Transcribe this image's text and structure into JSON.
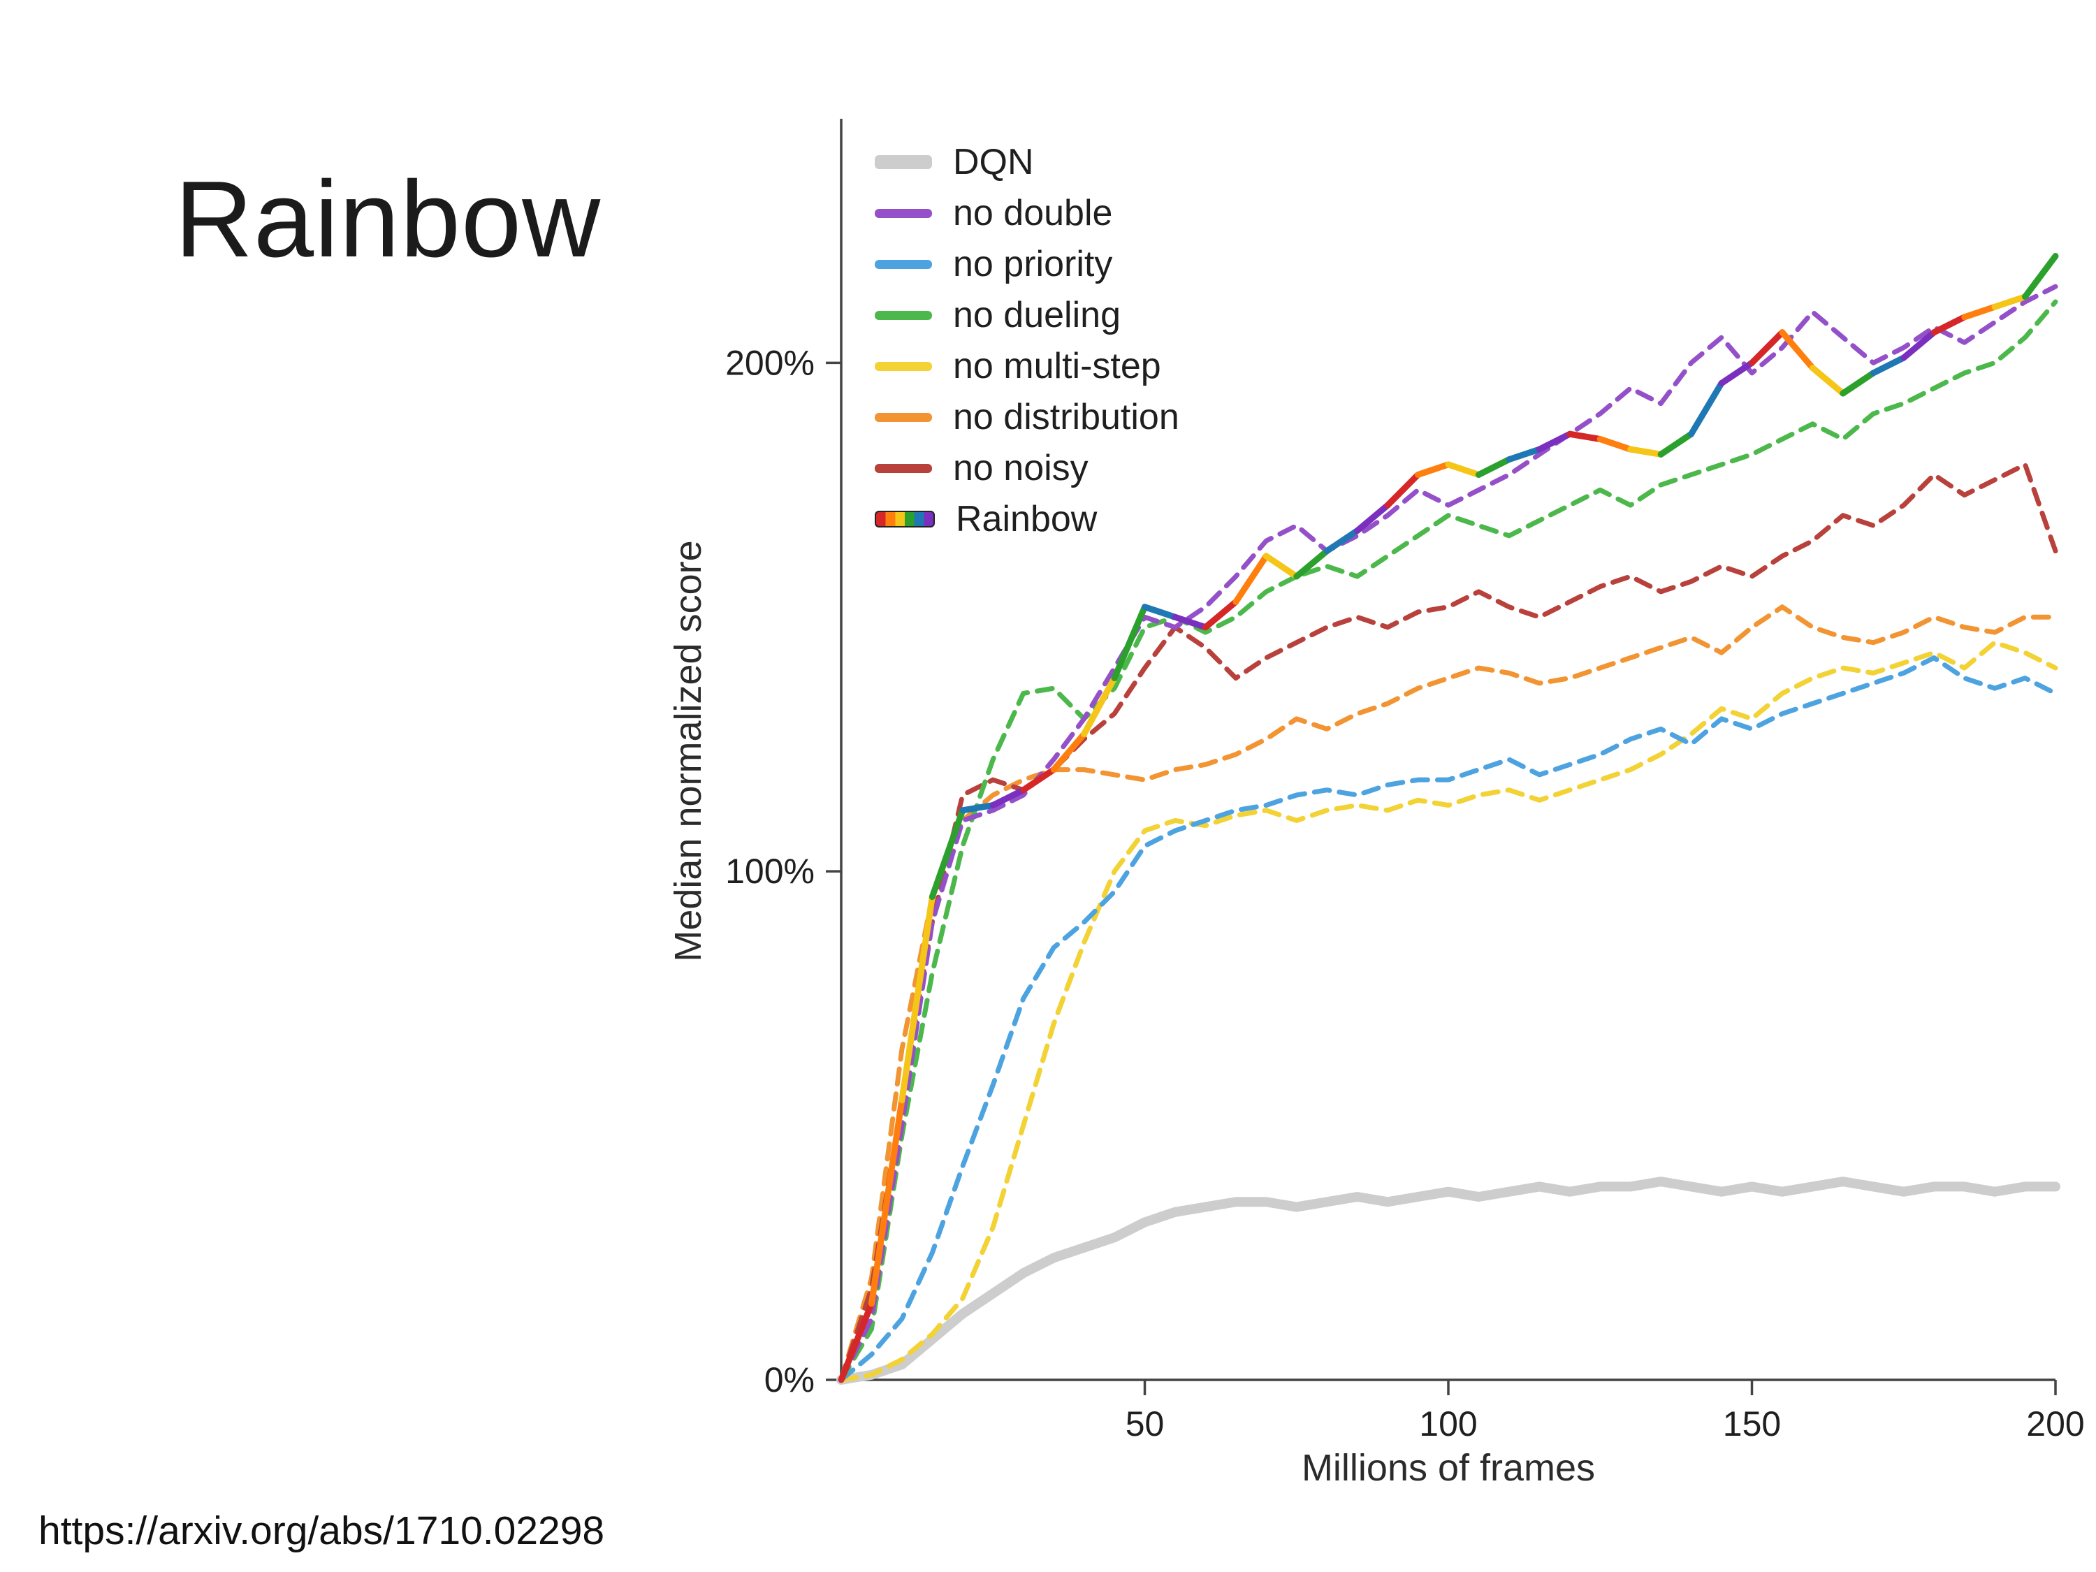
{
  "slide": {
    "title": "Rainbow",
    "url": "https://arxiv.org/abs/1710.02298"
  },
  "chart_data": {
    "type": "line",
    "title": "",
    "xlabel": "Millions of frames",
    "ylabel": "Median normalized score",
    "xlim": [
      0,
      200
    ],
    "ylim": [
      0,
      248
    ],
    "grid": false,
    "legend_position": "top-left",
    "xticks": [
      50,
      100,
      150,
      200
    ],
    "yticks": [
      {
        "value": 0,
        "label": "0%"
      },
      {
        "value": 100,
        "label": "100%"
      },
      {
        "value": 200,
        "label": "200%"
      }
    ],
    "x": [
      0,
      5,
      10,
      15,
      20,
      25,
      30,
      35,
      40,
      45,
      50,
      55,
      60,
      65,
      70,
      75,
      80,
      85,
      90,
      95,
      100,
      105,
      110,
      115,
      120,
      125,
      130,
      135,
      140,
      145,
      150,
      155,
      160,
      165,
      170,
      175,
      180,
      185,
      190,
      195,
      200
    ],
    "series": [
      {
        "name": "DQN",
        "color": "#cdcdcd",
        "style": "solid",
        "width": 14,
        "values": [
          0,
          1,
          3,
          8,
          13,
          17,
          21,
          24,
          26,
          28,
          31,
          33,
          34,
          35,
          35,
          34,
          35,
          36,
          35,
          36,
          37,
          36,
          37,
          38,
          37,
          38,
          38,
          39,
          38,
          37,
          38,
          37,
          38,
          39,
          38,
          37,
          38,
          38,
          37,
          38,
          38
        ]
      },
      {
        "name": "no double",
        "color": "#9450c8",
        "style": "dashed",
        "width": 7,
        "values": [
          0,
          12,
          50,
          90,
          110,
          112,
          115,
          122,
          130,
          140,
          150,
          148,
          152,
          158,
          165,
          168,
          163,
          166,
          170,
          175,
          172,
          175,
          178,
          182,
          186,
          190,
          195,
          192,
          200,
          205,
          198,
          203,
          210,
          205,
          200,
          203,
          207,
          204,
          208,
          212,
          215
        ]
      },
      {
        "name": "no priority",
        "color": "#4da3e0",
        "style": "dashed",
        "width": 7,
        "values": [
          0,
          5,
          12,
          25,
          42,
          58,
          75,
          85,
          90,
          96,
          105,
          108,
          110,
          112,
          113,
          115,
          116,
          115,
          117,
          118,
          118,
          120,
          122,
          119,
          121,
          123,
          126,
          128,
          125,
          130,
          128,
          131,
          133,
          135,
          137,
          139,
          142,
          138,
          136,
          138,
          135
        ]
      },
      {
        "name": "no dueling",
        "color": "#4cb84c",
        "style": "dashed",
        "width": 7,
        "values": [
          0,
          10,
          48,
          80,
          105,
          122,
          135,
          136,
          130,
          136,
          148,
          150,
          147,
          150,
          155,
          158,
          160,
          158,
          162,
          166,
          170,
          168,
          166,
          169,
          172,
          175,
          172,
          176,
          178,
          180,
          182,
          185,
          188,
          185,
          190,
          192,
          195,
          198,
          200,
          205,
          212
        ]
      },
      {
        "name": "no multi-step",
        "color": "#f2d234",
        "style": "dashed",
        "width": 7,
        "values": [
          0,
          1,
          4,
          9,
          16,
          30,
          50,
          70,
          86,
          100,
          108,
          110,
          109,
          111,
          112,
          110,
          112,
          113,
          112,
          114,
          113,
          115,
          116,
          114,
          116,
          118,
          120,
          123,
          127,
          132,
          130,
          135,
          138,
          140,
          139,
          141,
          143,
          140,
          145,
          143,
          140
        ]
      },
      {
        "name": "no distribution",
        "color": "#f29432",
        "style": "dashed",
        "width": 7,
        "values": [
          0,
          20,
          65,
          95,
          110,
          115,
          118,
          120,
          120,
          119,
          118,
          120,
          121,
          123,
          126,
          130,
          128,
          131,
          133,
          136,
          138,
          140,
          139,
          137,
          138,
          140,
          142,
          144,
          146,
          143,
          148,
          152,
          148,
          146,
          145,
          147,
          150,
          148,
          147,
          150,
          150
        ]
      },
      {
        "name": "no noisy",
        "color": "#b9413c",
        "style": "dashed",
        "width": 7,
        "values": [
          0,
          18,
          55,
          90,
          115,
          118,
          116,
          120,
          126,
          131,
          140,
          148,
          144,
          138,
          142,
          145,
          148,
          150,
          148,
          151,
          152,
          155,
          152,
          150,
          153,
          156,
          158,
          155,
          157,
          160,
          158,
          162,
          165,
          170,
          168,
          172,
          178,
          174,
          177,
          180,
          163
        ]
      },
      {
        "name": "Rainbow",
        "color": "rainbow",
        "style": "solid",
        "width": 9,
        "palette": [
          "#d62728",
          "#ff7f0e",
          "#f5c518",
          "#2ca02c",
          "#1f77b4",
          "#7b2fbe"
        ],
        "values": [
          0,
          15,
          55,
          95,
          112,
          113,
          116,
          120,
          127,
          138,
          152,
          150,
          148,
          153,
          162,
          158,
          163,
          167,
          172,
          178,
          180,
          178,
          181,
          183,
          186,
          185,
          183,
          182,
          186,
          196,
          200,
          206,
          199,
          194,
          198,
          201,
          206,
          209,
          211,
          213,
          221
        ]
      }
    ]
  }
}
